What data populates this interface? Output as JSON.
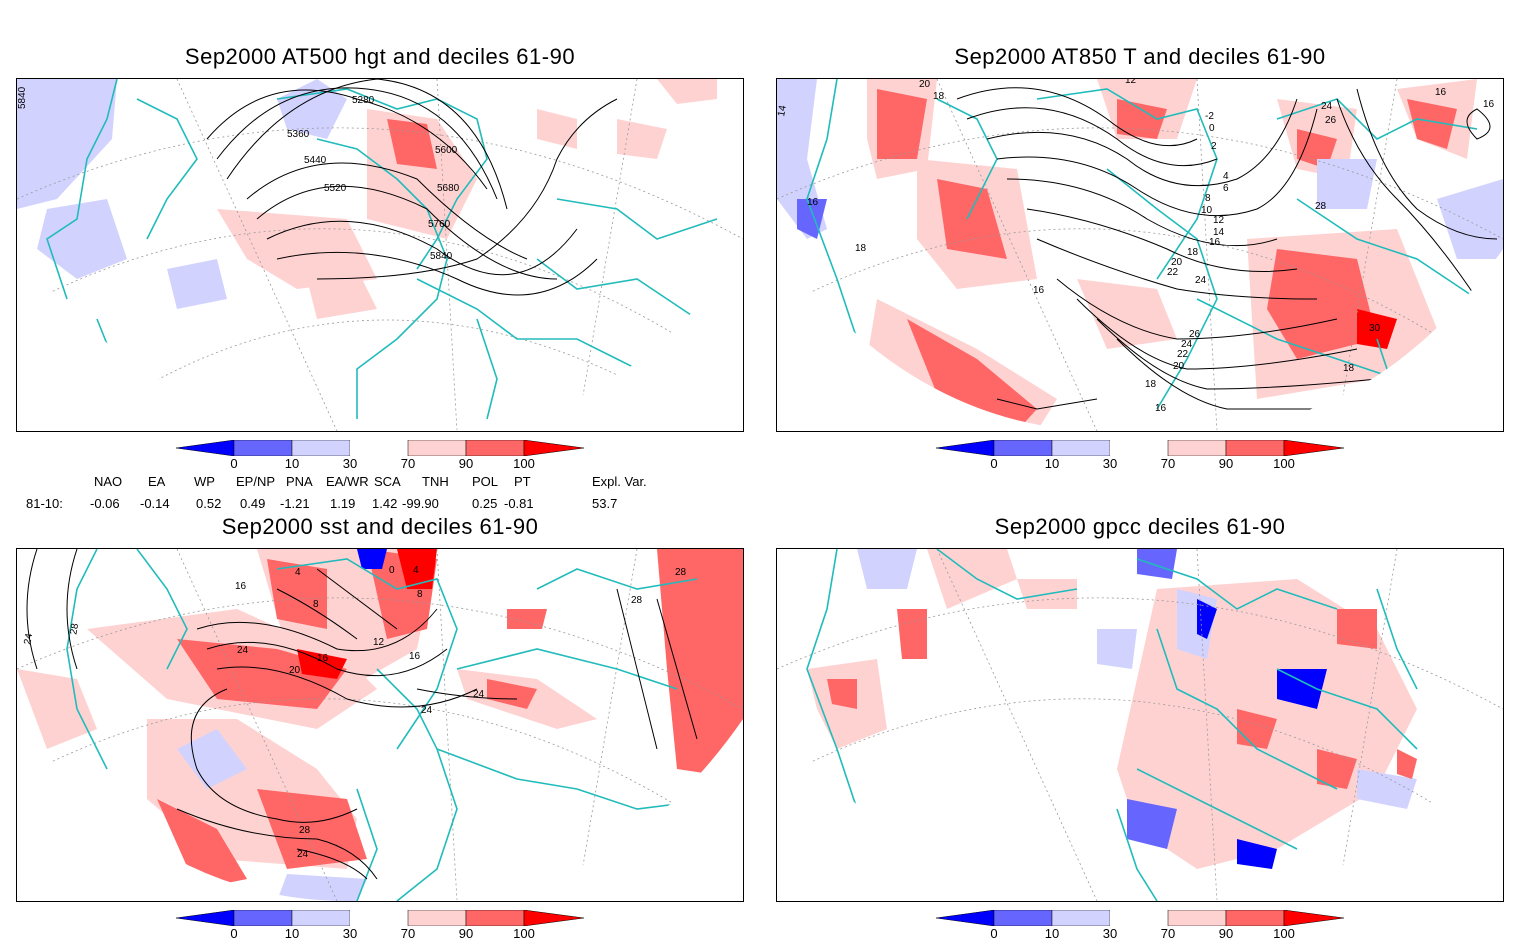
{
  "panels": [
    {
      "id": "hgt500",
      "title": "Sep2000 AT500 hgt and deciles 61-90",
      "contour_labels": [
        "5840",
        "5280",
        "5360",
        "5440",
        "5520",
        "5600",
        "5680",
        "5760",
        "5840"
      ]
    },
    {
      "id": "t850",
      "title": "Sep2000 AT850 T and deciles 61-90",
      "contour_labels": [
        "14",
        "20",
        "18",
        "12",
        "-2",
        "0",
        "2",
        "4",
        "6",
        "8",
        "10",
        "12",
        "14",
        "16",
        "18",
        "20",
        "22",
        "24",
        "26",
        "24",
        "22",
        "20",
        "18",
        "16",
        "16",
        "18",
        "16",
        "24",
        "26",
        "28",
        "16",
        "16",
        "30",
        "18"
      ]
    },
    {
      "id": "sst",
      "title": "Sep2000 sst and deciles 61-90",
      "contour_labels": [
        "24",
        "28",
        "16",
        "4",
        "8",
        "12",
        "16",
        "20",
        "24",
        "0",
        "4",
        "8",
        "16",
        "24",
        "24",
        "28",
        "28",
        "28",
        "24"
      ]
    },
    {
      "id": "gpcc",
      "title": "Sep2000 gpcc deciles 61-90",
      "contour_labels": []
    }
  ],
  "colorbar": {
    "ticks": [
      "0",
      "10",
      "30",
      "70",
      "90",
      "100"
    ],
    "colors": {
      "strong_low": "#0000ff",
      "mid_low": "#6666ff",
      "weak_low": "#d2d2ff",
      "neutral": "#ffffff",
      "weak_high": "#ffd2d2",
      "mid_high": "#ff6666",
      "strong_high": "#ff0000"
    }
  },
  "indices": {
    "headers": [
      "NAO",
      "EA",
      "WP",
      "EP/NP",
      "PNA",
      "EA/WR",
      "SCA",
      "TNH",
      "POL",
      "PT",
      "Expl. Var."
    ],
    "row_label": "81-10:",
    "values": [
      "-0.06",
      "-0.14",
      "0.52",
      "0.49",
      "-1.21",
      "1.19",
      "1.42",
      "-99.90",
      "0.25",
      "-0.81",
      "53.7"
    ]
  },
  "map_colors": {
    "coast": "#22bbbb",
    "contour": "#000000",
    "grid": "#999999"
  }
}
